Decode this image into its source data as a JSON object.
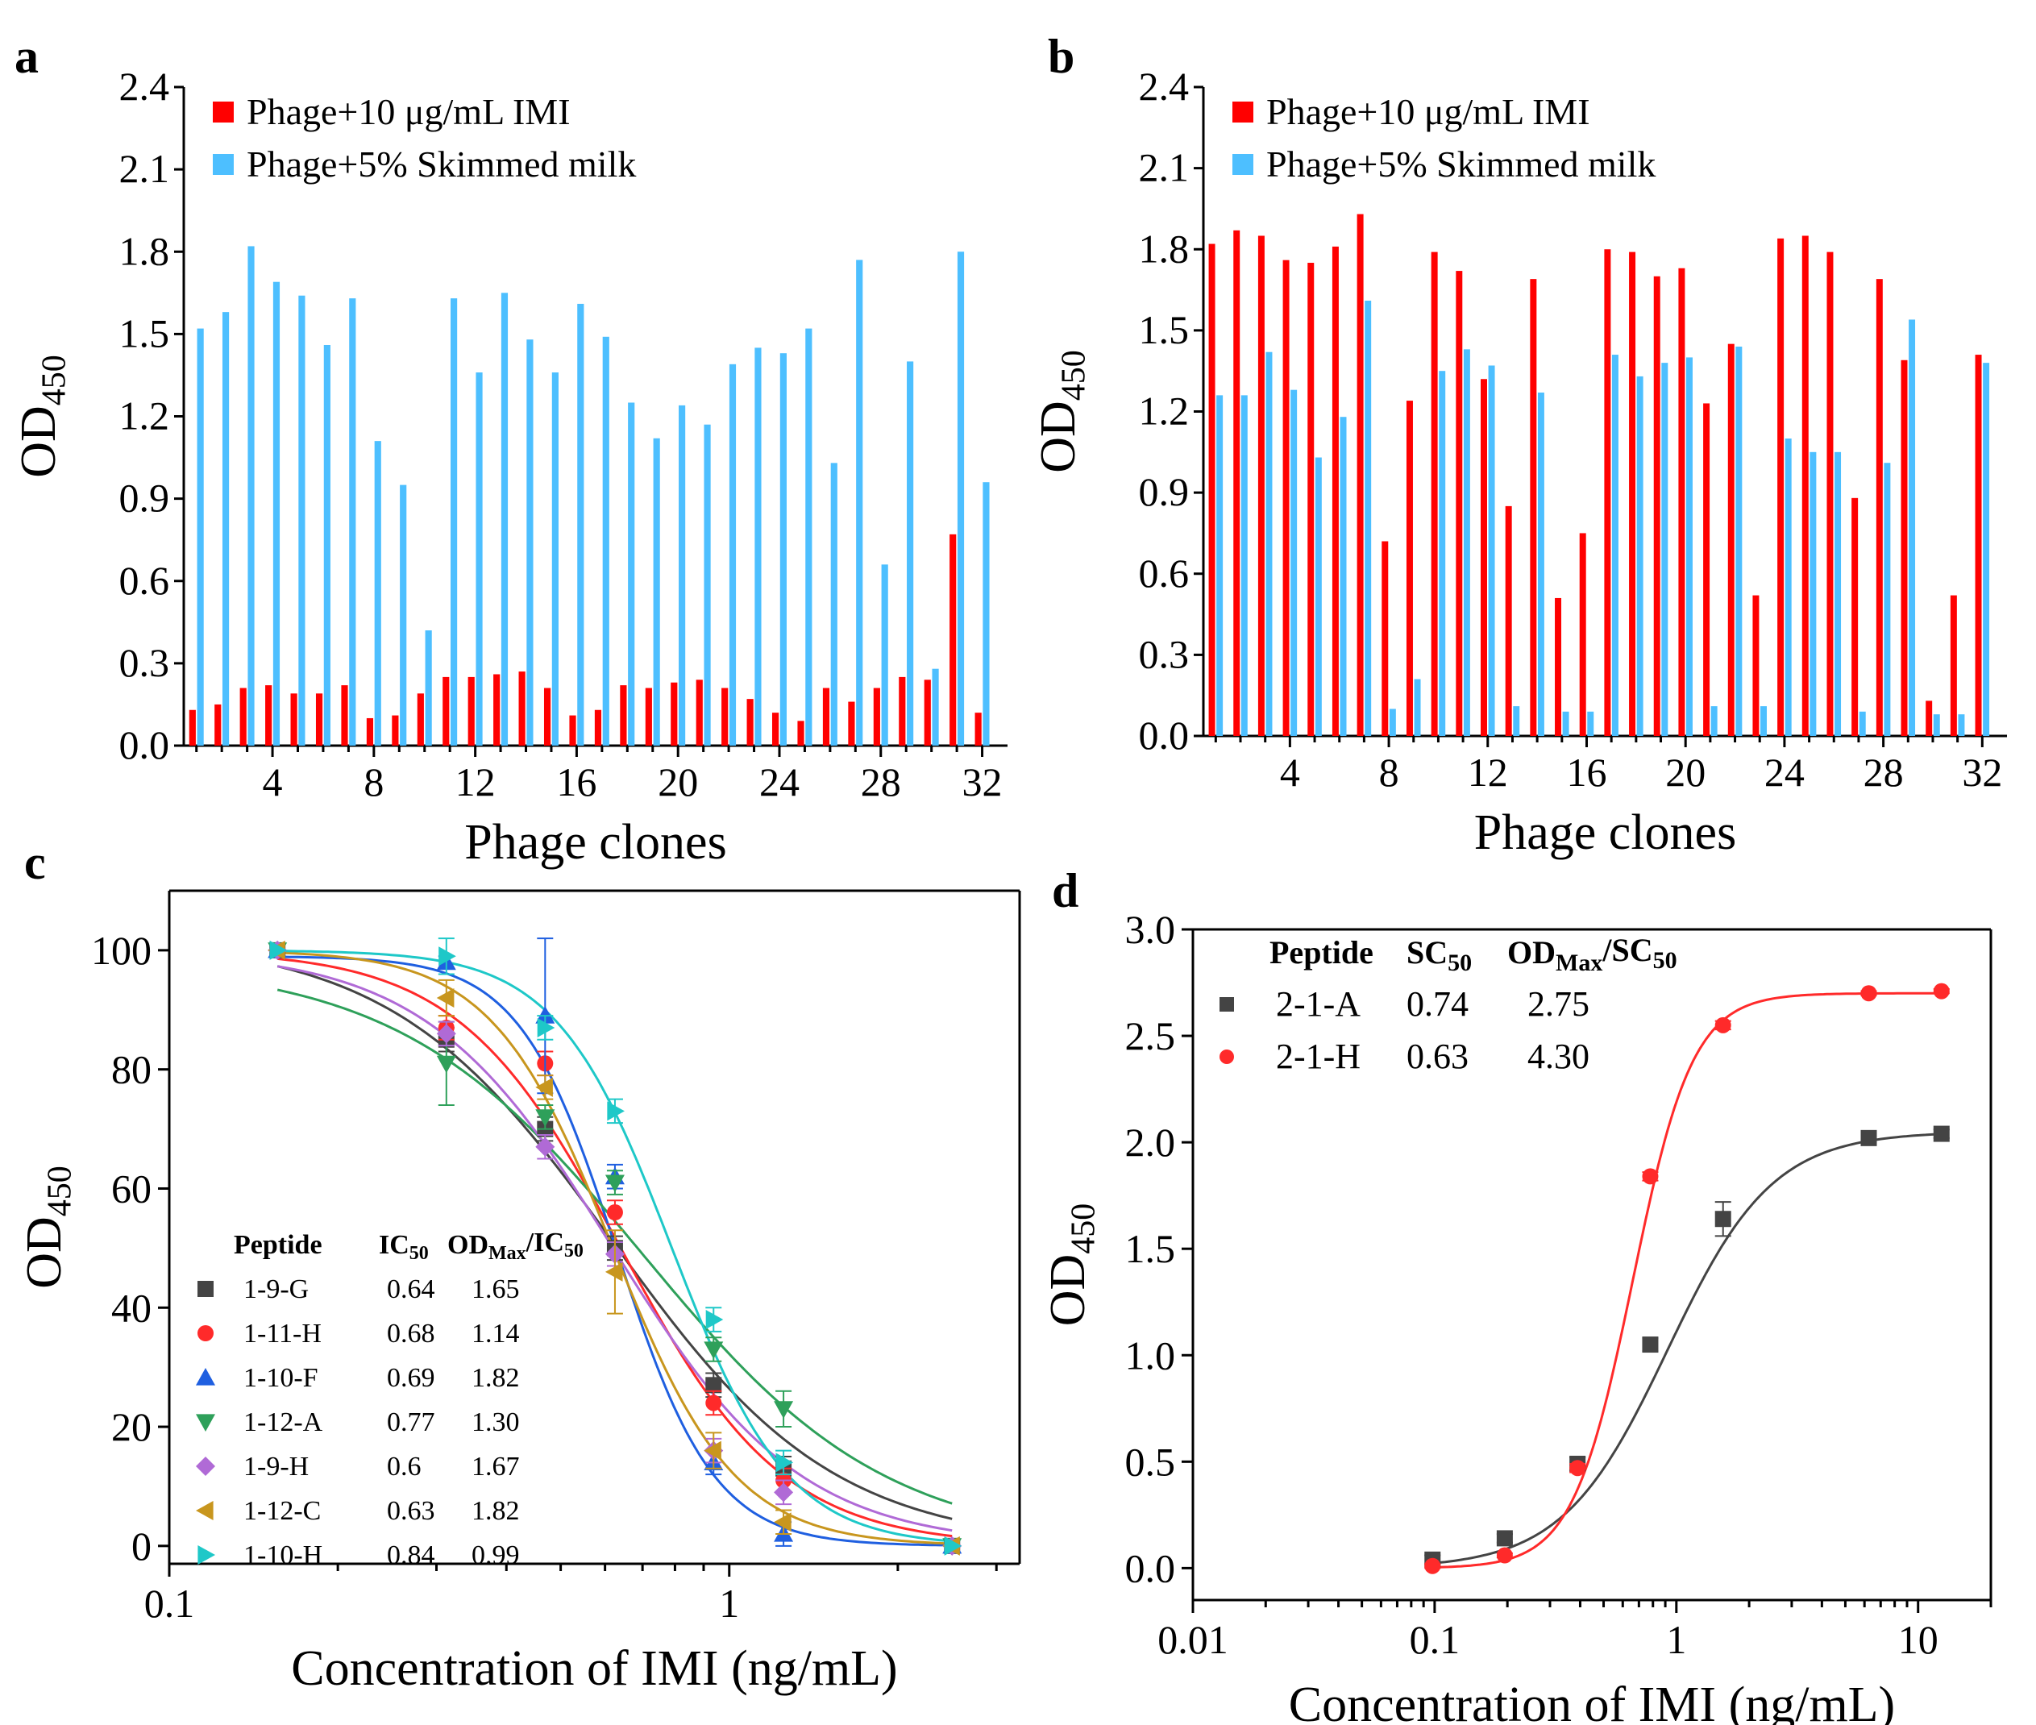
{
  "figure": {
    "panel_letters": [
      "a",
      "b",
      "c",
      "d"
    ]
  },
  "chart_data": [
    {
      "panel": "a",
      "type": "bar",
      "xlabel": "Phage clones",
      "ylabel": "OD",
      "ylabel_sub": "450",
      "ylim": [
        0,
        2.4
      ],
      "yticks": [
        "0.0",
        "0.3",
        "0.6",
        "0.9",
        "1.2",
        "1.5",
        "1.8",
        "2.1",
        "2.4"
      ],
      "xticks": [
        "4",
        "8",
        "12",
        "16",
        "20",
        "24",
        "28",
        "32"
      ],
      "xtick_values": [
        4,
        8,
        12,
        16,
        20,
        24,
        28,
        32
      ],
      "categories": [
        1,
        2,
        3,
        4,
        5,
        6,
        7,
        8,
        9,
        10,
        11,
        12,
        13,
        14,
        15,
        16,
        17,
        18,
        19,
        20,
        21,
        22,
        23,
        24,
        25,
        26,
        27,
        28,
        29,
        30,
        31,
        32
      ],
      "legend_position": "top-left",
      "series": [
        {
          "name": "Phage+10 μg/mL IMI",
          "color": "#ff0000",
          "values": [
            0.13,
            0.15,
            0.21,
            0.22,
            0.19,
            0.19,
            0.22,
            0.1,
            0.11,
            0.19,
            0.25,
            0.25,
            0.26,
            0.27,
            0.21,
            0.11,
            0.13,
            0.22,
            0.21,
            0.23,
            0.24,
            0.21,
            0.17,
            0.12,
            0.09,
            0.21,
            0.16,
            0.21,
            0.25,
            0.24,
            0.77,
            0.12
          ]
        },
        {
          "name": "Phage+5% Skimmed milk",
          "color": "#4dbfff",
          "values": [
            1.52,
            1.58,
            1.82,
            1.69,
            1.64,
            1.46,
            1.63,
            1.11,
            0.95,
            0.42,
            1.63,
            1.36,
            1.65,
            1.48,
            1.36,
            1.61,
            1.49,
            1.25,
            1.12,
            1.24,
            1.17,
            1.39,
            1.45,
            1.43,
            1.52,
            1.03,
            1.77,
            0.66,
            1.4,
            0.28,
            1.8,
            0.96
          ]
        }
      ]
    },
    {
      "panel": "b",
      "type": "bar",
      "xlabel": "Phage clones",
      "ylabel": "OD",
      "ylabel_sub": "450",
      "ylim": [
        0,
        2.4
      ],
      "yticks": [
        "0.0",
        "0.3",
        "0.6",
        "0.9",
        "1.2",
        "1.5",
        "1.8",
        "2.1",
        "2.4"
      ],
      "xticks": [
        "4",
        "8",
        "12",
        "16",
        "20",
        "24",
        "28",
        "32"
      ],
      "xtick_values": [
        4,
        8,
        12,
        16,
        20,
        24,
        28,
        32
      ],
      "categories": [
        1,
        2,
        3,
        4,
        5,
        6,
        7,
        8,
        9,
        10,
        11,
        12,
        13,
        14,
        15,
        16,
        17,
        18,
        19,
        20,
        21,
        22,
        23,
        24,
        25,
        26,
        27,
        28,
        29,
        30,
        31,
        32
      ],
      "legend_position": "top-left",
      "series": [
        {
          "name": "Phage+10 μg/mL IMI",
          "color": "#ff0000",
          "values": [
            1.82,
            1.87,
            1.85,
            1.76,
            1.75,
            1.81,
            1.93,
            0.72,
            1.24,
            1.79,
            1.72,
            1.32,
            0.85,
            1.69,
            0.51,
            0.75,
            1.8,
            1.79,
            1.7,
            1.73,
            1.23,
            1.45,
            0.52,
            1.84,
            1.85,
            1.79,
            0.88,
            1.69,
            1.39,
            0.13,
            0.52,
            1.41
          ]
        },
        {
          "name": "Phage+5% Skimmed milk",
          "color": "#4dbfff",
          "values": [
            1.26,
            1.26,
            1.42,
            1.28,
            1.03,
            1.18,
            1.61,
            0.1,
            0.21,
            1.35,
            1.43,
            1.37,
            0.11,
            1.27,
            0.09,
            0.09,
            1.41,
            1.33,
            1.38,
            1.4,
            0.11,
            1.44,
            0.11,
            1.1,
            1.05,
            1.05,
            0.09,
            1.01,
            1.54,
            0.08,
            0.08,
            1.38
          ]
        }
      ]
    },
    {
      "panel": "c",
      "type": "scatter",
      "xscale": "log",
      "xlabel": "Concentration of IMI (ng/mL)",
      "ylabel": "OD",
      "ylabel_sub": "450",
      "xlim": [
        0.1,
        3.3
      ],
      "ylim": [
        -3,
        110
      ],
      "xticks": [
        "0.1",
        "1"
      ],
      "xtick_values": [
        0.1,
        1
      ],
      "yticks": [
        "0",
        "20",
        "40",
        "60",
        "80",
        "100"
      ],
      "ytick_values": [
        0,
        20,
        40,
        60,
        80,
        100
      ],
      "x": [
        0.156,
        0.3125,
        0.469,
        0.625,
        0.9375,
        1.25,
        2.5
      ],
      "table": {
        "headers": {
          "col1": "Peptide",
          "col2": "IC",
          "col2_sub": "50",
          "col3": "OD",
          "col3_sub": "Max",
          "col3_tail": "/IC",
          "col3_tail_sub": "50"
        },
        "rows": [
          {
            "name": "1-9-G",
            "ic50": "0.64",
            "ratio": "1.65"
          },
          {
            "name": "1-11-H",
            "ic50": "0.68",
            "ratio": "1.14"
          },
          {
            "name": "1-10-F",
            "ic50": "0.69",
            "ratio": "1.82"
          },
          {
            "name": "1-12-A",
            "ic50": "0.77",
            "ratio": "1.30"
          },
          {
            "name": "1-9-H",
            "ic50": "0.6",
            "ratio": "1.67"
          },
          {
            "name": "1-12-C",
            "ic50": "0.63",
            "ratio": "1.82"
          },
          {
            "name": "1-10-H",
            "ic50": "0.84",
            "ratio": "0.99"
          }
        ]
      },
      "series": [
        {
          "name": "1-9-G",
          "color": "#444444",
          "marker": "square",
          "values": [
            100,
            85,
            70,
            50,
            27,
            13,
            0
          ],
          "errors": [
            0,
            2,
            2,
            2,
            2,
            2,
            0
          ],
          "fit": {
            "top": 102,
            "bottom": 0,
            "ec50": 0.62,
            "hill": 2.2
          }
        },
        {
          "name": "1-11-H",
          "color": "#ff2a2a",
          "marker": "circle",
          "values": [
            100,
            87,
            81,
            56,
            24,
            11,
            0
          ],
          "errors": [
            0,
            2,
            2,
            2,
            2,
            2,
            0
          ],
          "fit": {
            "top": 100,
            "bottom": 0,
            "ec50": 0.64,
            "hill": 3.0
          }
        },
        {
          "name": "1-10-F",
          "color": "#1f5fe0",
          "marker": "triangle-up",
          "values": [
            100,
            98,
            89,
            62,
            14,
            2,
            0
          ],
          "errors": [
            0,
            1,
            13,
            2,
            2,
            2,
            0
          ],
          "fit": {
            "top": 99,
            "bottom": 0,
            "ec50": 0.63,
            "hill": 5.0
          }
        },
        {
          "name": "1-12-A",
          "color": "#2ea05a",
          "marker": "triangle-down",
          "values": [
            100,
            81,
            72,
            61,
            33,
            23,
            0
          ],
          "errors": [
            0,
            7,
            2,
            2,
            2,
            3,
            0
          ],
          "fit": {
            "top": 98,
            "bottom": 0,
            "ec50": 0.7,
            "hill": 2.0
          }
        },
        {
          "name": "1-9-H",
          "color": "#b06ad6",
          "marker": "diamond",
          "values": [
            100,
            86,
            67,
            49,
            16,
            9,
            0
          ],
          "errors": [
            0,
            2,
            2,
            2,
            2,
            2,
            0
          ],
          "fit": {
            "top": 100,
            "bottom": 0,
            "ec50": 0.62,
            "hill": 2.6
          }
        },
        {
          "name": "1-12-C",
          "color": "#c8961e",
          "marker": "triangle-left",
          "values": [
            100,
            92,
            77,
            46,
            16,
            4,
            0
          ],
          "errors": [
            0,
            3,
            2,
            7,
            3,
            2,
            0
          ],
          "fit": {
            "top": 100,
            "bottom": 0,
            "ec50": 0.62,
            "hill": 4.0
          }
        },
        {
          "name": "1-10-H",
          "color": "#1ec8c8",
          "marker": "triangle-right",
          "values": [
            100,
            99,
            87,
            73,
            38,
            14,
            0
          ],
          "errors": [
            0,
            3,
            2,
            2,
            2,
            2,
            0
          ],
          "fit": {
            "top": 100,
            "bottom": 0,
            "ec50": 0.79,
            "hill": 4.2
          }
        }
      ]
    },
    {
      "panel": "d",
      "type": "scatter",
      "xscale": "log",
      "xlabel": "Concentration of IMI (ng/mL)",
      "ylabel": "OD",
      "ylabel_sub": "450",
      "xlim": [
        0.01,
        20
      ],
      "ylim": [
        -0.15,
        3.0
      ],
      "xticks": [
        "0.01",
        "0.1",
        "1",
        "10"
      ],
      "xtick_values": [
        0.01,
        0.1,
        1,
        10
      ],
      "yticks": [
        "0.0",
        "0.5",
        "1.0",
        "1.5",
        "2.0",
        "2.5",
        "3.0"
      ],
      "ytick_values": [
        0,
        0.5,
        1.0,
        1.5,
        2.0,
        2.5,
        3.0
      ],
      "x": [
        0.098,
        0.195,
        0.39,
        0.78,
        1.56,
        6.25,
        12.5
      ],
      "table": {
        "headers": {
          "col1": "Peptide",
          "col2": "SC",
          "col2_sub": "50",
          "col3": "OD",
          "col3_sub": "Max",
          "col3_tail": "/SC",
          "col3_tail_sub": "50"
        },
        "rows": [
          {
            "name": "2-1-A",
            "sc50": "0.74",
            "ratio": "2.75"
          },
          {
            "name": "2-1-H",
            "sc50": "0.63",
            "ratio": "4.30"
          }
        ]
      },
      "series": [
        {
          "name": "2-1-A",
          "color": "#444444",
          "marker": "square",
          "values": [
            0.04,
            0.14,
            0.49,
            1.05,
            1.64,
            2.02,
            2.04
          ],
          "errors": [
            0.02,
            0.02,
            0.03,
            0.03,
            0.08,
            0.02,
            0.02
          ],
          "fit": {
            "bottom": 0.0,
            "top": 2.05,
            "ec50": 0.92,
            "hill": 2.0
          }
        },
        {
          "name": "2-1-H",
          "color": "#ff2a2a",
          "marker": "circle",
          "values": [
            0.01,
            0.06,
            0.47,
            1.84,
            2.55,
            2.7,
            2.71
          ],
          "errors": [
            0.01,
            0.01,
            0.02,
            0.02,
            0.02,
            0.01,
            0.01
          ],
          "fit": {
            "bottom": 0.0,
            "top": 2.7,
            "ec50": 0.66,
            "hill": 3.5
          }
        }
      ]
    }
  ]
}
